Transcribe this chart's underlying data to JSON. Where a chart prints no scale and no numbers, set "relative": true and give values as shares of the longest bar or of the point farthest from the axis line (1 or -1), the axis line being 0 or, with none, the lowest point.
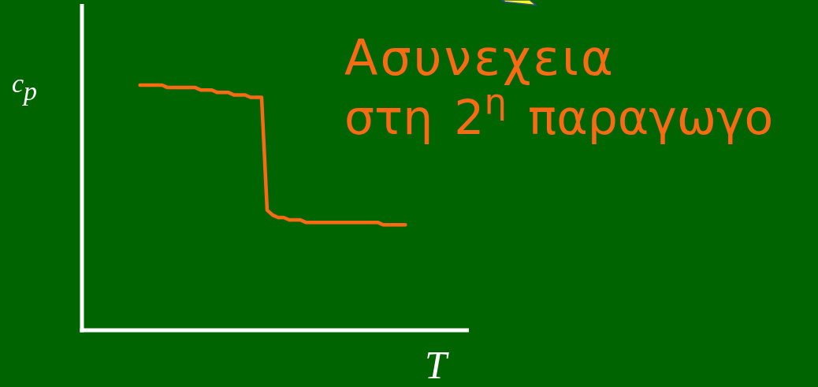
{
  "chart_data": {
    "type": "line",
    "xlabel": "T",
    "ylabel": "c$_{p}$",
    "annotations": [
      "Ασυνεχεια",
      "στη 2$^{η}$ παραγωγο"
    ],
    "relative": true,
    "categories": [
      null,
      null,
      null,
      null,
      null,
      null,
      null,
      null,
      null,
      null,
      null,
      null,
      null,
      null,
      null,
      null,
      null,
      null,
      null,
      null,
      null,
      null,
      null,
      null,
      null,
      null,
      null,
      null,
      null,
      null,
      null,
      null,
      null,
      null,
      null,
      null,
      null,
      null,
      null,
      null,
      null,
      null,
      null,
      null,
      null,
      null,
      null,
      null,
      null,
      null,
      null,
      null,
      null,
      null,
      null,
      null,
      null,
      null,
      null,
      null,
      null,
      null,
      null,
      null,
      null,
      null,
      null,
      null,
      null,
      null
    ],
    "series": [
      {
        "color": "#fa6a12",
        "values": [
          null,
          null,
          null,
          null,
          null,
          null,
          null,
          null,
          null,
          null,
          1.0,
          1.0,
          1.0,
          1.0,
          1.0,
          0.99,
          0.99,
          0.99,
          0.99,
          0.99,
          0.99,
          0.98,
          0.98,
          0.98,
          0.97,
          0.97,
          0.97,
          0.96,
          0.96,
          0.96,
          0.95,
          0.95,
          0.95,
          0.49,
          0.47,
          0.46,
          0.46,
          0.45,
          0.45,
          0.45,
          0.44,
          0.44,
          0.44,
          0.44,
          0.44,
          0.44,
          0.44,
          0.44,
          0.44,
          0.44,
          0.44,
          0.44,
          0.44,
          0.44,
          0.43,
          0.43,
          0.43,
          0.43,
          0.43,
          null,
          null,
          null,
          null,
          null,
          null,
          null,
          null,
          null,
          null,
          null
        ]
      }
    ]
  }
}
